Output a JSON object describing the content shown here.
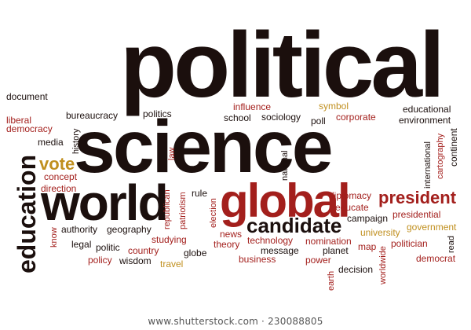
{
  "colors": {
    "dark": "#1b0f0d",
    "red": "#a31f1c",
    "gold": "#c08f1e"
  },
  "cloud": {
    "political": "political",
    "science": "science",
    "world": "world",
    "global": "global",
    "education": "education",
    "candidate": "candidate",
    "president": "president",
    "vote": "vote",
    "document": "document",
    "liberal": "liberal",
    "democracy": "democracy",
    "media": "media",
    "history": "history",
    "bureaucracy": "bureaucracy",
    "politics": "politics",
    "influence": "influence",
    "symbol": "symbol",
    "school": "school",
    "sociology": "sociology",
    "poll": "poll",
    "corporate": "corporate",
    "educational": "educational",
    "environment": "environment",
    "continent": "continent",
    "cartography": "cartography",
    "international": "international",
    "national": "national",
    "law": "law",
    "concept": "concept",
    "direction": "direction",
    "republican": "republican",
    "patriotism": "patriotism",
    "rule": "rule",
    "election": "election",
    "diplomacy": "diplomacy",
    "educate": "educate",
    "campaign": "campaign",
    "presidential": "presidential",
    "government": "government",
    "university": "university",
    "know": "know",
    "authority": "authority",
    "geography": "geography",
    "studying": "studying",
    "legal": "legal",
    "politic": "politic",
    "country": "country",
    "globe": "globe",
    "policy": "policy",
    "wisdom": "wisdom",
    "travel": "travel",
    "news": "news",
    "theory": "theory",
    "technology": "technology",
    "message": "message",
    "business": "business",
    "nomination": "nomination",
    "planet": "planet",
    "power": "power",
    "earth": "earth",
    "decision": "decision",
    "map": "map",
    "worldwide": "worldwide",
    "politician": "politician",
    "read": "read",
    "democrat": "democrat"
  },
  "footer": {
    "watermark": "www.shutterstock.com · 230088805"
  }
}
